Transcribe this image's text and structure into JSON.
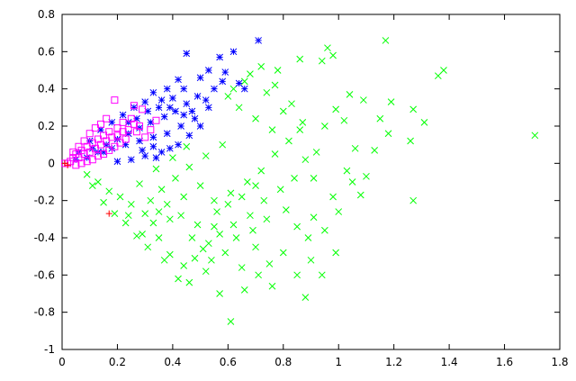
{
  "chart_data": {
    "type": "scatter",
    "title": "",
    "xlabel": "",
    "ylabel": "",
    "xlim": [
      0,
      1.8
    ],
    "ylim": [
      -1,
      0.8
    ],
    "x_ticks": [
      "0",
      "0.2",
      "0.4",
      "0.6",
      "0.8",
      "1",
      "1.2",
      "1.4",
      "1.6",
      "1.8"
    ],
    "y_ticks": [
      "0.8",
      "0.6",
      "0.4",
      "0.2",
      "0",
      "-0.2",
      "-0.4",
      "-0.6",
      "-0.8",
      "-1"
    ],
    "grid": false,
    "legend": "none",
    "series": [
      {
        "marker": "x",
        "color": "#00ff00",
        "points": [
          [
            1.71,
            0.15
          ],
          [
            1.38,
            0.5
          ],
          [
            1.36,
            0.47
          ],
          [
            1.17,
            0.66
          ],
          [
            0.96,
            0.62
          ],
          [
            0.98,
            0.58
          ],
          [
            0.94,
            0.55
          ],
          [
            0.86,
            0.56
          ],
          [
            0.72,
            0.52
          ],
          [
            0.78,
            0.5
          ],
          [
            1.27,
            0.29
          ],
          [
            1.31,
            0.22
          ],
          [
            1.19,
            0.33
          ],
          [
            1.15,
            0.24
          ],
          [
            1.18,
            0.16
          ],
          [
            1.26,
            0.12
          ],
          [
            1.04,
            0.37
          ],
          [
            1.09,
            0.34
          ],
          [
            1.13,
            0.07
          ],
          [
            1.06,
            0.08
          ],
          [
            1.27,
            -0.2
          ],
          [
            1.1,
            -0.07
          ],
          [
            0.99,
            0.29
          ],
          [
            1.02,
            0.23
          ],
          [
            0.95,
            0.2
          ],
          [
            1.03,
            -0.04
          ],
          [
            1.08,
            -0.17
          ],
          [
            1.0,
            -0.26
          ],
          [
            0.91,
            -0.29
          ],
          [
            0.91,
            -0.08
          ],
          [
            0.99,
            -0.48
          ],
          [
            0.94,
            -0.6
          ],
          [
            0.9,
            -0.52
          ],
          [
            0.88,
            -0.72
          ],
          [
            0.85,
            -0.6
          ],
          [
            0.75,
            -0.54
          ],
          [
            0.7,
            -0.45
          ],
          [
            0.66,
            -0.68
          ],
          [
            0.61,
            -0.85
          ],
          [
            0.57,
            -0.7
          ],
          [
            0.52,
            -0.58
          ],
          [
            0.46,
            -0.64
          ],
          [
            0.44,
            -0.55
          ],
          [
            0.39,
            -0.49
          ],
          [
            0.35,
            -0.4
          ],
          [
            0.3,
            -0.27
          ],
          [
            0.25,
            -0.22
          ],
          [
            0.21,
            -0.18
          ],
          [
            0.17,
            -0.15
          ],
          [
            0.13,
            -0.1
          ],
          [
            0.09,
            -0.06
          ],
          [
            0.11,
            -0.12
          ],
          [
            0.15,
            -0.21
          ],
          [
            0.19,
            -0.27
          ],
          [
            0.23,
            -0.32
          ],
          [
            0.27,
            -0.39
          ],
          [
            0.31,
            -0.45
          ],
          [
            0.37,
            -0.52
          ],
          [
            0.42,
            -0.62
          ],
          [
            0.48,
            -0.51
          ],
          [
            0.53,
            -0.43
          ],
          [
            0.57,
            -0.38
          ],
          [
            0.62,
            -0.33
          ],
          [
            0.68,
            -0.28
          ],
          [
            0.73,
            -0.2
          ],
          [
            0.79,
            -0.14
          ],
          [
            0.84,
            -0.08
          ],
          [
            0.88,
            0.02
          ],
          [
            0.82,
            0.12
          ],
          [
            0.76,
            0.18
          ],
          [
            0.7,
            0.24
          ],
          [
            0.64,
            0.3
          ],
          [
            0.6,
            0.36
          ],
          [
            0.66,
            0.44
          ],
          [
            0.74,
            0.38
          ],
          [
            0.8,
            0.28
          ],
          [
            0.86,
            0.18
          ],
          [
            0.92,
            0.06
          ],
          [
            0.58,
            0.1
          ],
          [
            0.52,
            0.04
          ],
          [
            0.46,
            -0.02
          ],
          [
            0.41,
            -0.08
          ],
          [
            0.36,
            -0.14
          ],
          [
            0.32,
            -0.2
          ],
          [
            0.28,
            -0.11
          ],
          [
            0.34,
            -0.03
          ],
          [
            0.4,
            0.03
          ],
          [
            0.45,
            0.09
          ],
          [
            0.5,
            -0.12
          ],
          [
            0.55,
            -0.2
          ],
          [
            0.61,
            -0.16
          ],
          [
            0.67,
            -0.1
          ],
          [
            0.72,
            -0.04
          ],
          [
            0.77,
            0.05
          ],
          [
            0.63,
            -0.4
          ],
          [
            0.69,
            -0.36
          ],
          [
            0.74,
            -0.3
          ],
          [
            0.59,
            -0.48
          ],
          [
            0.54,
            -0.52
          ],
          [
            0.49,
            -0.33
          ],
          [
            0.43,
            -0.28
          ],
          [
            0.38,
            -0.22
          ],
          [
            0.33,
            -0.32
          ],
          [
            0.29,
            -0.38
          ],
          [
            0.24,
            -0.28
          ],
          [
            0.56,
            -0.26
          ],
          [
            0.6,
            -0.22
          ],
          [
            0.65,
            -0.18
          ],
          [
            0.7,
            -0.12
          ],
          [
            0.81,
            -0.25
          ],
          [
            0.85,
            -0.34
          ],
          [
            0.89,
            -0.4
          ],
          [
            0.95,
            -0.36
          ],
          [
            0.98,
            -0.18
          ],
          [
            1.05,
            -0.1
          ],
          [
            0.87,
            0.22
          ],
          [
            0.83,
            0.32
          ],
          [
            0.77,
            0.42
          ],
          [
            0.68,
            0.48
          ],
          [
            0.62,
            0.4
          ],
          [
            0.47,
            -0.4
          ],
          [
            0.51,
            -0.46
          ],
          [
            0.55,
            -0.34
          ],
          [
            0.65,
            -0.56
          ],
          [
            0.71,
            -0.6
          ],
          [
            0.76,
            -0.66
          ],
          [
            0.8,
            -0.48
          ],
          [
            0.44,
            -0.18
          ],
          [
            0.39,
            -0.3
          ],
          [
            0.35,
            -0.26
          ]
        ]
      },
      {
        "marker": "star",
        "color": "#0000ff",
        "points": [
          [
            0.71,
            0.66
          ],
          [
            0.62,
            0.6
          ],
          [
            0.57,
            0.57
          ],
          [
            0.45,
            0.59
          ],
          [
            0.53,
            0.5
          ],
          [
            0.59,
            0.49
          ],
          [
            0.64,
            0.43
          ],
          [
            0.66,
            0.4
          ],
          [
            0.58,
            0.44
          ],
          [
            0.5,
            0.46
          ],
          [
            0.42,
            0.45
          ],
          [
            0.38,
            0.4
          ],
          [
            0.33,
            0.38
          ],
          [
            0.3,
            0.33
          ],
          [
            0.26,
            0.3
          ],
          [
            0.22,
            0.26
          ],
          [
            0.18,
            0.22
          ],
          [
            0.14,
            0.18
          ],
          [
            0.1,
            0.12
          ],
          [
            0.06,
            0.06
          ],
          [
            0.05,
            0.02
          ],
          [
            0.09,
            0.03
          ],
          [
            0.13,
            0.06
          ],
          [
            0.18,
            0.08
          ],
          [
            0.23,
            0.1
          ],
          [
            0.28,
            0.12
          ],
          [
            0.33,
            0.14
          ],
          [
            0.38,
            0.16
          ],
          [
            0.43,
            0.2
          ],
          [
            0.48,
            0.24
          ],
          [
            0.53,
            0.3
          ],
          [
            0.49,
            0.36
          ],
          [
            0.45,
            0.32
          ],
          [
            0.41,
            0.28
          ],
          [
            0.37,
            0.25
          ],
          [
            0.32,
            0.22
          ],
          [
            0.28,
            0.19
          ],
          [
            0.24,
            0.16
          ],
          [
            0.2,
            0.13
          ],
          [
            0.16,
            0.1
          ],
          [
            0.35,
            0.3
          ],
          [
            0.4,
            0.35
          ],
          [
            0.44,
            0.4
          ],
          [
            0.55,
            0.4
          ],
          [
            0.52,
            0.34
          ],
          [
            0.47,
            0.28
          ],
          [
            0.42,
            0.1
          ],
          [
            0.36,
            0.06
          ],
          [
            0.3,
            0.04
          ],
          [
            0.25,
            0.02
          ],
          [
            0.2,
            0.01
          ],
          [
            0.34,
            0.03
          ],
          [
            0.39,
            0.08
          ],
          [
            0.46,
            0.15
          ],
          [
            0.5,
            0.2
          ],
          [
            0.27,
            0.24
          ],
          [
            0.31,
            0.28
          ],
          [
            0.36,
            0.34
          ],
          [
            0.39,
            0.3
          ],
          [
            0.44,
            0.26
          ],
          [
            0.15,
            0.06
          ],
          [
            0.11,
            0.08
          ],
          [
            0.24,
            0.22
          ],
          [
            0.29,
            0.07
          ],
          [
            0.33,
            0.09
          ]
        ]
      },
      {
        "marker": "square",
        "color": "#ff00ff",
        "points": [
          [
            0.19,
            0.34
          ],
          [
            0.26,
            0.31
          ],
          [
            0.29,
            0.29
          ],
          [
            0.34,
            0.23
          ],
          [
            0.28,
            0.2
          ],
          [
            0.25,
            0.24
          ],
          [
            0.22,
            0.22
          ],
          [
            0.2,
            0.19
          ],
          [
            0.17,
            0.17
          ],
          [
            0.15,
            0.15
          ],
          [
            0.13,
            0.13
          ],
          [
            0.11,
            0.11
          ],
          [
            0.09,
            0.09
          ],
          [
            0.07,
            0.07
          ],
          [
            0.05,
            0.05
          ],
          [
            0.04,
            0.03
          ],
          [
            0.03,
            0.01
          ],
          [
            0.02,
            0.0
          ],
          [
            0.01,
            0.0
          ],
          [
            0.06,
            0.03
          ],
          [
            0.08,
            0.05
          ],
          [
            0.1,
            0.06
          ],
          [
            0.12,
            0.08
          ],
          [
            0.14,
            0.1
          ],
          [
            0.16,
            0.12
          ],
          [
            0.18,
            0.14
          ],
          [
            0.2,
            0.15
          ],
          [
            0.22,
            0.17
          ],
          [
            0.24,
            0.18
          ],
          [
            0.26,
            0.21
          ],
          [
            0.23,
            0.13
          ],
          [
            0.21,
            0.11
          ],
          [
            0.19,
            0.09
          ],
          [
            0.17,
            0.07
          ],
          [
            0.15,
            0.05
          ],
          [
            0.13,
            0.04
          ],
          [
            0.11,
            0.02
          ],
          [
            0.09,
            0.01
          ],
          [
            0.07,
            0.0
          ],
          [
            0.05,
            -0.01
          ],
          [
            0.14,
            0.21
          ],
          [
            0.16,
            0.24
          ],
          [
            0.12,
            0.19
          ],
          [
            0.1,
            0.16
          ],
          [
            0.08,
            0.12
          ],
          [
            0.06,
            0.09
          ],
          [
            0.04,
            0.06
          ],
          [
            0.27,
            0.17
          ],
          [
            0.3,
            0.14
          ],
          [
            0.32,
            0.18
          ]
        ]
      },
      {
        "marker": "plus",
        "color": "#ff0000",
        "points": [
          [
            0.17,
            -0.27
          ],
          [
            0.01,
            0.0
          ],
          [
            0.02,
            -0.01
          ]
        ]
      }
    ]
  }
}
